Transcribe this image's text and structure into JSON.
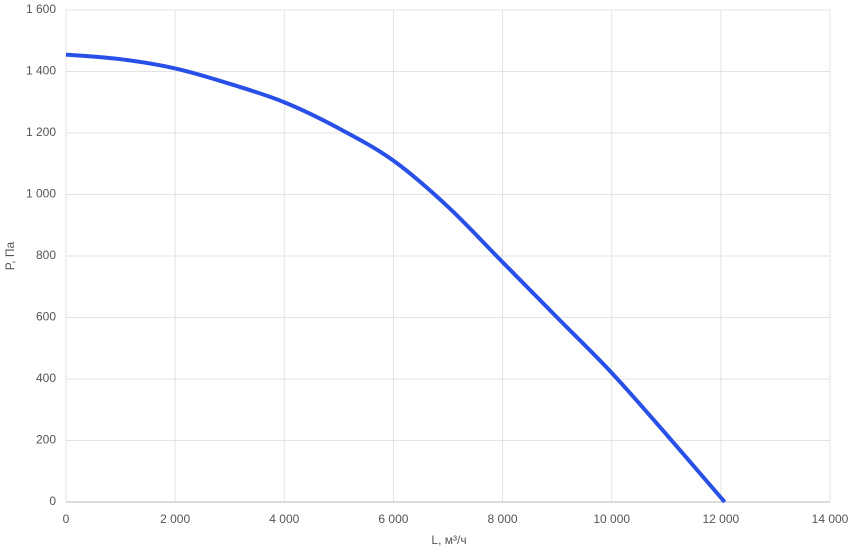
{
  "chart_data": {
    "type": "line",
    "x_label": "L, м³/ч",
    "y_label": "P, Па",
    "x": [
      0,
      1000,
      2000,
      3000,
      4000,
      5000,
      6000,
      7000,
      8000,
      9000,
      10000,
      11000,
      12070
    ],
    "series": [
      {
        "color": "#2850e8",
        "values": [
          1455,
          1440,
          1410,
          1360,
          1300,
          1215,
          1110,
          960,
          780,
          600,
          420,
          220,
          0
        ]
      }
    ],
    "xlim": [
      0,
      14000
    ],
    "xticks": [
      0,
      {
        "value": 2000,
        "label": "2 000"
      },
      {
        "value": 4000,
        "label": "4 000"
      },
      {
        "value": 6000,
        "label": "6 000"
      },
      {
        "value": 8000,
        "label": "8 000"
      },
      {
        "value": 10000,
        "label": "10 000"
      },
      {
        "value": 12000,
        "label": "12 000"
      },
      {
        "value": 14000,
        "label": "14 000"
      }
    ],
    "ylim": [
      0,
      1600
    ],
    "yticks": [
      0,
      200,
      400,
      600,
      800,
      {
        "value": 1000,
        "label": "1 000"
      },
      {
        "value": 1200,
        "label": "1 200"
      },
      {
        "value": 1400,
        "label": "1 400"
      },
      {
        "value": 1600,
        "label": "1 600"
      }
    ],
    "grid": true
  }
}
